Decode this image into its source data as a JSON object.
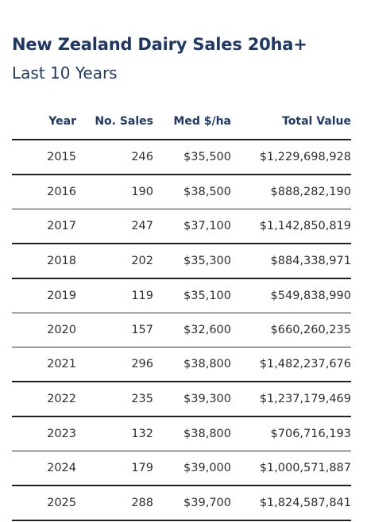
{
  "title": "New Zealand Dairy Sales 20ha+",
  "subtitle": "Last 10 Years",
  "columns": [
    "Year",
    "No. Sales",
    "Med $/ha",
    "Total Value"
  ],
  "chart_data": {
    "type": "table",
    "title": "New Zealand Dairy Sales 20ha+",
    "subtitle": "Last 10 Years",
    "columns": [
      "Year",
      "No. Sales",
      "Med $/ha",
      "Total Value"
    ],
    "rows": [
      {
        "year": "2015",
        "sales": "246",
        "med": "$35,500",
        "total": "$1,229,698,928"
      },
      {
        "year": "2016",
        "sales": "190",
        "med": "$38,500",
        "total": "$888,282,190"
      },
      {
        "year": "2017",
        "sales": "247",
        "med": "$37,100",
        "total": "$1,142,850,819"
      },
      {
        "year": "2018",
        "sales": "202",
        "med": "$35,300",
        "total": "$884,338,971"
      },
      {
        "year": "2019",
        "sales": "119",
        "med": "$35,100",
        "total": "$549,838,990"
      },
      {
        "year": "2020",
        "sales": "157",
        "med": "$32,600",
        "total": "$660,260,235"
      },
      {
        "year": "2021",
        "sales": "296",
        "med": "$38,800",
        "total": "$1,482,237,676"
      },
      {
        "year": "2022",
        "sales": "235",
        "med": "$39,300",
        "total": "$1,237,179,469"
      },
      {
        "year": "2023",
        "sales": "132",
        "med": "$38,800",
        "total": "$706,716,193"
      },
      {
        "year": "2024",
        "sales": "179",
        "med": "$39,000",
        "total": "$1,000,571,887"
      },
      {
        "year": "2025",
        "sales": "288",
        "med": "$39,700",
        "total": "$1,824,587,841"
      }
    ]
  },
  "colors": {
    "heading": "#1f3864",
    "text": "#2e2e2e",
    "rule": "#222222"
  }
}
